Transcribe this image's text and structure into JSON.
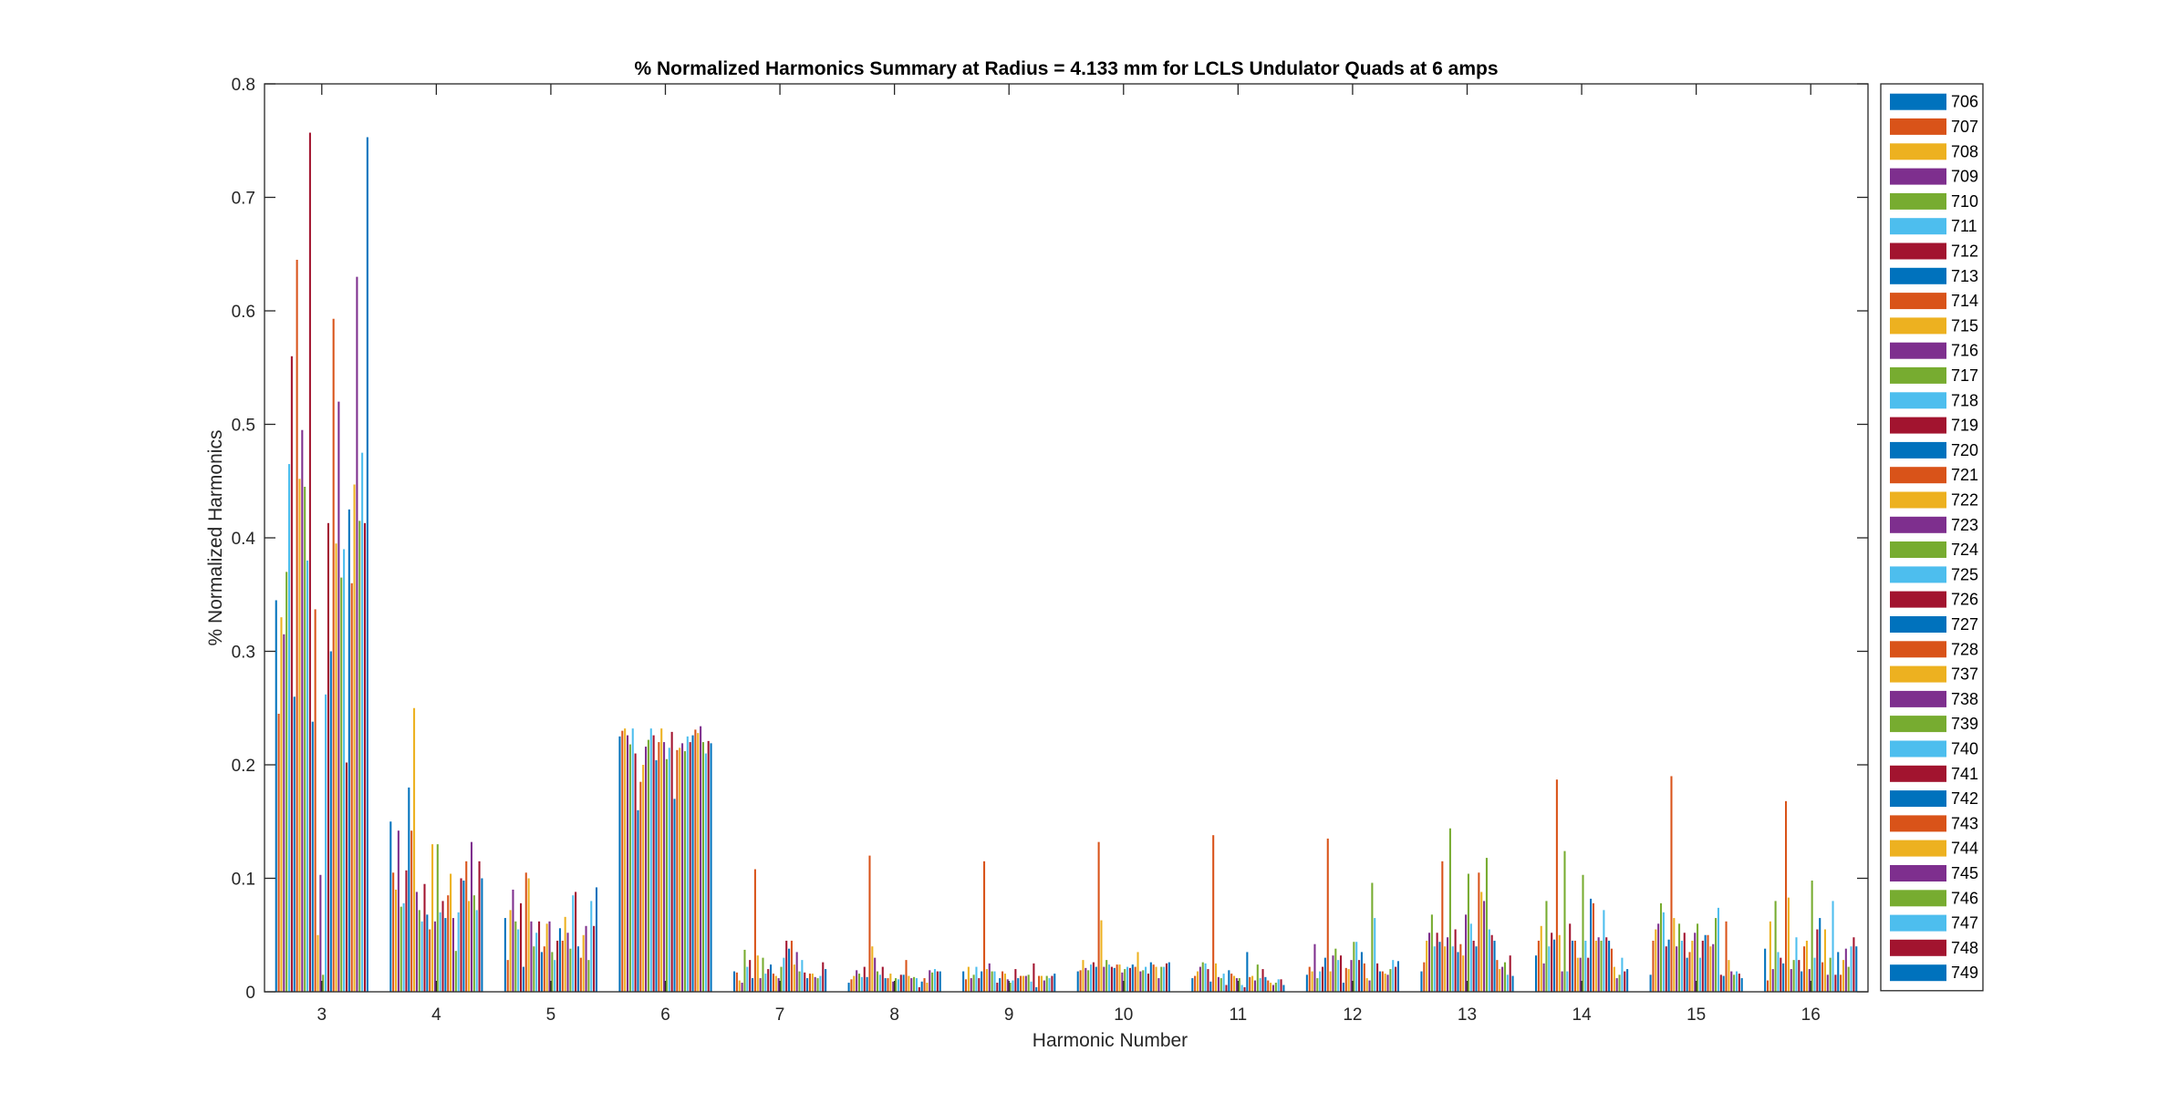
{
  "chart_data": {
    "type": "bar",
    "title": "% Normalized Harmonics Summary at Radius = 4.133 mm for LCLS Undulator Quads at 6 amps",
    "xlabel": "Harmonic Number",
    "ylabel": "% Normalized Harmonics",
    "ylim": [
      0,
      0.8
    ],
    "yticks": [
      "0",
      "0.1",
      "0.2",
      "0.3",
      "0.4",
      "0.5",
      "0.6",
      "0.7",
      "0.8"
    ],
    "categories": [
      "3",
      "4",
      "5",
      "6",
      "7",
      "8",
      "9",
      "10",
      "11",
      "12",
      "13",
      "14",
      "15",
      "16"
    ],
    "grid": false,
    "legend_position": "outside right",
    "colors": [
      "#0072BD",
      "#D95319",
      "#EDB120",
      "#7E2F8E",
      "#77AC30",
      "#4DBEEE",
      "#A2142F"
    ],
    "series": [
      {
        "name": "706",
        "values": [
          0.345,
          0.15,
          0.065,
          0.225,
          0.018,
          0.008,
          0.018,
          0.018,
          0.012,
          0.015,
          0.018,
          0.032,
          0.015,
          0.038
        ]
      },
      {
        "name": "707",
        "values": [
          0.245,
          0.105,
          0.028,
          0.23,
          0.017,
          0.011,
          0.011,
          0.019,
          0.014,
          0.022,
          0.026,
          0.045,
          0.045,
          0.01
        ]
      },
      {
        "name": "708",
        "values": [
          0.33,
          0.09,
          0.072,
          0.232,
          0.01,
          0.014,
          0.022,
          0.028,
          0.018,
          0.018,
          0.045,
          0.058,
          0.055,
          0.062
        ]
      },
      {
        "name": "709",
        "values": [
          0.315,
          0.142,
          0.09,
          0.226,
          0.008,
          0.019,
          0.012,
          0.021,
          0.022,
          0.042,
          0.052,
          0.025,
          0.06,
          0.02
        ]
      },
      {
        "name": "710",
        "values": [
          0.37,
          0.075,
          0.062,
          0.218,
          0.037,
          0.016,
          0.015,
          0.019,
          0.026,
          0.012,
          0.068,
          0.08,
          0.078,
          0.08
        ]
      },
      {
        "name": "711",
        "values": [
          0.465,
          0.078,
          0.055,
          0.232,
          0.022,
          0.013,
          0.022,
          0.024,
          0.025,
          0.018,
          0.04,
          0.04,
          0.07,
          0.035
        ]
      },
      {
        "name": "712",
        "values": [
          0.56,
          0.107,
          0.078,
          0.21,
          0.028,
          0.022,
          0.012,
          0.026,
          0.02,
          0.022,
          0.052,
          0.052,
          0.04,
          0.03
        ]
      },
      {
        "name": "713",
        "values": [
          0.26,
          0.18,
          0.022,
          0.16,
          0.012,
          0.013,
          0.018,
          0.022,
          0.009,
          0.03,
          0.044,
          0.046,
          0.046,
          0.025
        ]
      },
      {
        "name": "714",
        "values": [
          0.645,
          0.142,
          0.105,
          0.185,
          0.108,
          0.12,
          0.115,
          0.132,
          0.138,
          0.135,
          0.115,
          0.187,
          0.19,
          0.168
        ]
      },
      {
        "name": "715",
        "values": [
          0.452,
          0.25,
          0.1,
          0.2,
          0.032,
          0.04,
          0.02,
          0.063,
          0.025,
          0.018,
          0.04,
          0.05,
          0.065,
          0.083
        ]
      },
      {
        "name": "716",
        "values": [
          0.495,
          0.088,
          0.062,
          0.216,
          0.012,
          0.03,
          0.025,
          0.022,
          0.013,
          0.032,
          0.048,
          0.018,
          0.04,
          0.02
        ]
      },
      {
        "name": "717",
        "values": [
          0.445,
          0.072,
          0.04,
          0.222,
          0.03,
          0.018,
          0.018,
          0.028,
          0.012,
          0.038,
          0.144,
          0.124,
          0.06,
          0.028
        ]
      },
      {
        "name": "718",
        "values": [
          0.38,
          0.062,
          0.052,
          0.232,
          0.016,
          0.015,
          0.018,
          0.024,
          0.016,
          0.028,
          0.04,
          0.018,
          0.045,
          0.048
        ]
      },
      {
        "name": "719",
        "values": [
          0.757,
          0.095,
          0.062,
          0.226,
          0.02,
          0.022,
          0.008,
          0.022,
          0.006,
          0.032,
          0.055,
          0.06,
          0.052,
          0.028
        ]
      },
      {
        "name": "720",
        "values": [
          0.238,
          0.068,
          0.035,
          0.204,
          0.024,
          0.012,
          0.012,
          0.021,
          0.019,
          0.008,
          0.035,
          0.045,
          0.03,
          0.018
        ]
      },
      {
        "name": "721",
        "values": [
          0.337,
          0.055,
          0.04,
          0.22,
          0.016,
          0.012,
          0.018,
          0.024,
          0.016,
          0.021,
          0.042,
          0.045,
          0.035,
          0.04
        ]
      },
      {
        "name": "722",
        "values": [
          0.05,
          0.13,
          0.06,
          0.232,
          0.014,
          0.016,
          0.016,
          0.024,
          0.014,
          0.02,
          0.032,
          0.03,
          0.045,
          0.045
        ]
      },
      {
        "name": "723",
        "values": [
          0.103,
          0.062,
          0.062,
          0.22,
          0.012,
          0.009,
          0.011,
          0.017,
          0.012,
          0.028,
          0.068,
          0.03,
          0.052,
          0.02
        ]
      },
      {
        "name": "724",
        "values": [
          0.015,
          0.13,
          0.035,
          0.205,
          0.022,
          0.012,
          0.008,
          0.02,
          0.012,
          0.044,
          0.104,
          0.103,
          0.06,
          0.098
        ]
      },
      {
        "name": "725",
        "values": [
          0.262,
          0.07,
          0.028,
          0.215,
          0.03,
          0.011,
          0.01,
          0.022,
          0.006,
          0.044,
          0.06,
          0.045,
          0.03,
          0.03
        ]
      },
      {
        "name": "726",
        "values": [
          0.413,
          0.08,
          0.045,
          0.229,
          0.045,
          0.015,
          0.02,
          0.021,
          0.004,
          0.028,
          0.045,
          0.03,
          0.045,
          0.055
        ]
      },
      {
        "name": "727",
        "values": [
          0.3,
          0.065,
          0.056,
          0.17,
          0.038,
          0.015,
          0.012,
          0.024,
          0.035,
          0.035,
          0.04,
          0.082,
          0.05,
          0.065
        ]
      },
      {
        "name": "728",
        "values": [
          0.593,
          0.085,
          0.045,
          0.213,
          0.045,
          0.028,
          0.014,
          0.022,
          0.013,
          0.025,
          0.105,
          0.078,
          0.05,
          0.026
        ]
      },
      {
        "name": "737",
        "values": [
          0.395,
          0.104,
          0.066,
          0.215,
          0.024,
          0.014,
          0.014,
          0.035,
          0.014,
          0.012,
          0.088,
          0.045,
          0.04,
          0.055
        ]
      },
      {
        "name": "738",
        "values": [
          0.52,
          0.065,
          0.052,
          0.219,
          0.035,
          0.012,
          0.014,
          0.018,
          0.01,
          0.01,
          0.08,
          0.048,
          0.042,
          0.015
        ]
      },
      {
        "name": "739",
        "values": [
          0.365,
          0.036,
          0.038,
          0.212,
          0.018,
          0.013,
          0.015,
          0.019,
          0.024,
          0.096,
          0.118,
          0.045,
          0.065,
          0.03
        ]
      },
      {
        "name": "740",
        "values": [
          0.39,
          0.07,
          0.085,
          0.225,
          0.028,
          0.012,
          0.009,
          0.022,
          0.012,
          0.065,
          0.055,
          0.072,
          0.074,
          0.08
        ]
      },
      {
        "name": "741",
        "values": [
          0.202,
          0.1,
          0.088,
          0.22,
          0.017,
          0.004,
          0.025,
          0.016,
          0.02,
          0.025,
          0.05,
          0.048,
          0.015,
          0.015
        ]
      },
      {
        "name": "742",
        "values": [
          0.425,
          0.098,
          0.04,
          0.226,
          0.012,
          0.009,
          0.004,
          0.026,
          0.013,
          0.018,
          0.045,
          0.045,
          0.014,
          0.035
        ]
      },
      {
        "name": "743",
        "values": [
          0.36,
          0.115,
          0.03,
          0.231,
          0.016,
          0.012,
          0.014,
          0.024,
          0.01,
          0.018,
          0.028,
          0.038,
          0.062,
          0.015
        ]
      },
      {
        "name": "744",
        "values": [
          0.447,
          0.08,
          0.05,
          0.228,
          0.016,
          0.008,
          0.014,
          0.022,
          0.008,
          0.016,
          0.02,
          0.022,
          0.028,
          0.028
        ]
      },
      {
        "name": "745",
        "values": [
          0.63,
          0.132,
          0.058,
          0.234,
          0.013,
          0.019,
          0.01,
          0.012,
          0.006,
          0.015,
          0.022,
          0.012,
          0.018,
          0.038
        ]
      },
      {
        "name": "746",
        "values": [
          0.415,
          0.085,
          0.028,
          0.22,
          0.012,
          0.017,
          0.014,
          0.022,
          0.008,
          0.02,
          0.026,
          0.015,
          0.015,
          0.022
        ]
      },
      {
        "name": "747",
        "values": [
          0.475,
          0.072,
          0.08,
          0.21,
          0.014,
          0.02,
          0.012,
          0.022,
          0.011,
          0.028,
          0.015,
          0.03,
          0.018,
          0.04
        ]
      },
      {
        "name": "748",
        "values": [
          0.413,
          0.115,
          0.058,
          0.221,
          0.026,
          0.018,
          0.014,
          0.025,
          0.011,
          0.022,
          0.032,
          0.018,
          0.016,
          0.048
        ]
      },
      {
        "name": "749",
        "values": [
          0.753,
          0.1,
          0.092,
          0.219,
          0.02,
          0.018,
          0.016,
          0.026,
          0.006,
          0.027,
          0.014,
          0.02,
          0.012,
          0.04
        ]
      }
    ]
  }
}
